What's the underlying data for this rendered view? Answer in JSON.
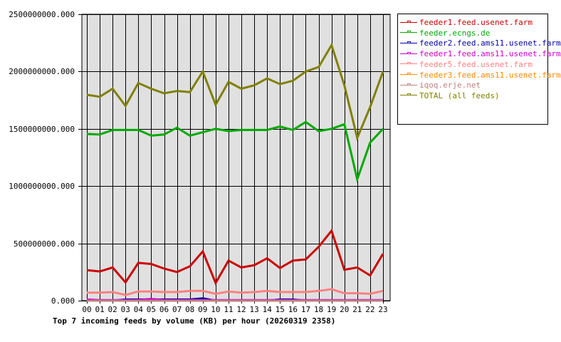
{
  "chart_data": {
    "type": "line",
    "title": "Top 7 incoming feeds by volume (KB) per hour (20260319 2358)",
    "xlabel": "",
    "ylabel": "",
    "ylim": [
      0,
      2500000000
    ],
    "grid": true,
    "legend_position": "right",
    "y_ticks": [
      "0.000",
      "500000000.000",
      "1000000000.000",
      "1500000000.000",
      "2000000000.000",
      "2500000000.000"
    ],
    "categories": [
      "00",
      "01",
      "02",
      "03",
      "04",
      "05",
      "06",
      "07",
      "08",
      "09",
      "10",
      "11",
      "12",
      "13",
      "14",
      "15",
      "16",
      "17",
      "18",
      "19",
      "20",
      "21",
      "22",
      "23"
    ],
    "series": [
      {
        "name": "feeder1.feed.usenet.farm",
        "color": "#cc0000",
        "values": [
          267000000,
          255000000,
          290000000,
          160000000,
          330000000,
          320000000,
          280000000,
          250000000,
          300000000,
          430000000,
          155000000,
          350000000,
          290000000,
          310000000,
          370000000,
          285000000,
          350000000,
          360000000,
          470000000,
          610000000,
          270000000,
          290000000,
          220000000,
          410000000
        ]
      },
      {
        "name": "feeder.ecngs.de",
        "color": "#00aa00",
        "values": [
          1455000000,
          1450000000,
          1490000000,
          1490000000,
          1490000000,
          1440000000,
          1450000000,
          1510000000,
          1440000000,
          1470000000,
          1500000000,
          1480000000,
          1490000000,
          1490000000,
          1490000000,
          1520000000,
          1490000000,
          1560000000,
          1480000000,
          1500000000,
          1540000000,
          1060000000,
          1380000000,
          1500000000
        ]
      },
      {
        "name": "feeder2.feed.ams11.usenet.farm",
        "color": "#0000aa",
        "values": [
          0,
          0,
          0,
          10000000,
          10000000,
          10000000,
          10000000,
          10000000,
          10000000,
          20000000,
          0,
          0,
          0,
          0,
          0,
          10000000,
          10000000,
          0,
          0,
          0,
          0,
          0,
          0,
          0
        ]
      },
      {
        "name": "feeder1.feed.ams11.usenet.farm",
        "color": "#cc00cc",
        "values": [
          10000000,
          5000000,
          5000000,
          5000000,
          5000000,
          15000000,
          5000000,
          5000000,
          5000000,
          5000000,
          5000000,
          5000000,
          5000000,
          5000000,
          5000000,
          5000000,
          5000000,
          5000000,
          5000000,
          5000000,
          5000000,
          5000000,
          5000000,
          5000000
        ]
      },
      {
        "name": "feeder5.feed.usenet.farm",
        "color": "#ff8080",
        "values": [
          70000000,
          70000000,
          75000000,
          50000000,
          80000000,
          80000000,
          75000000,
          75000000,
          85000000,
          85000000,
          60000000,
          80000000,
          70000000,
          75000000,
          85000000,
          75000000,
          75000000,
          75000000,
          85000000,
          100000000,
          65000000,
          65000000,
          60000000,
          85000000
        ]
      },
      {
        "name": "feeder3.feed.ams11.usenet.farm",
        "color": "#ff8800",
        "values": [
          0,
          0,
          0,
          0,
          0,
          0,
          0,
          0,
          0,
          0,
          0,
          0,
          0,
          0,
          0,
          0,
          0,
          0,
          0,
          0,
          0,
          0,
          0,
          0
        ]
      },
      {
        "name": "iqoq.erje.net",
        "color": "#c08080",
        "values": [
          0,
          0,
          0,
          0,
          0,
          0,
          0,
          0,
          0,
          0,
          0,
          0,
          0,
          0,
          0,
          0,
          0,
          0,
          0,
          0,
          0,
          0,
          0,
          0
        ]
      },
      {
        "name": "TOTAL (all feeds)",
        "color": "#808000",
        "values": [
          1797000000,
          1780000000,
          1850000000,
          1700000000,
          1900000000,
          1850000000,
          1810000000,
          1830000000,
          1820000000,
          2000000000,
          1710000000,
          1910000000,
          1850000000,
          1880000000,
          1940000000,
          1890000000,
          1920000000,
          2000000000,
          2040000000,
          2230000000,
          1880000000,
          1420000000,
          1690000000,
          2000000000
        ]
      }
    ]
  },
  "colors": {
    "plot_background": "#e0e0e0",
    "grid": "#000000"
  }
}
